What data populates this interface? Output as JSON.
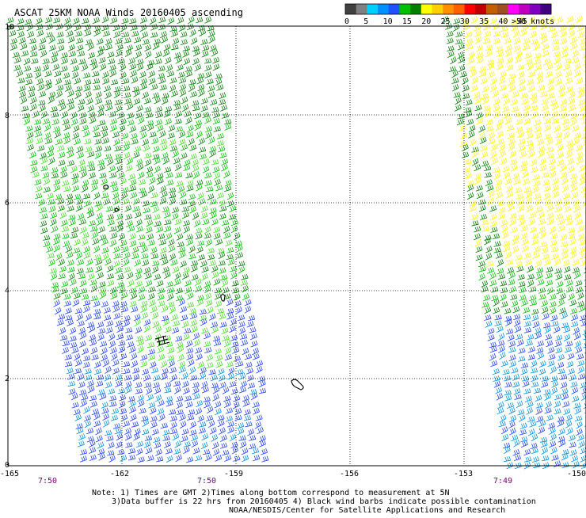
{
  "title": "ASCAT 25KM NOAA Winds 20160405 ascending",
  "legend": {
    "unit_label": ">50 knots",
    "ticks": [
      "0",
      "5",
      "10",
      "15",
      "20",
      "25",
      "30",
      "35",
      "40",
      "45"
    ],
    "colors": [
      "#404040",
      "#808080",
      "#00d0ff",
      "#0090ff",
      "#2050ff",
      "#00c000",
      "#008000",
      "#ffff00",
      "#ffd000",
      "#ff9000",
      "#ff6000",
      "#ff0000",
      "#c00000",
      "#c06000",
      "#a05020",
      "#ff00ff",
      "#c000c0",
      "#8000c0",
      "#400080"
    ]
  },
  "axes": {
    "lat_labels": [
      "10",
      "8",
      "6",
      "4",
      "2",
      "0"
    ],
    "lon_labels": [
      "-165",
      "-162",
      "-159",
      "-156",
      "-153",
      "-150"
    ]
  },
  "times": [
    "7:50",
    "7:50",
    "7:49"
  ],
  "notes": [
    "Note: 1) Times are GMT 2)Times along bottom correspond to measurement at 5N",
    "3)Data buffer is 22 hrs from 20160405 4) Black wind barbs indicate possible contamination",
    "NOAA/NESDIS/Center for Satellite Applications and Research"
  ],
  "colors": {
    "time_label": "#800080",
    "grid": "#000000",
    "barb_green_dark": "#008000",
    "barb_green": "#00c000",
    "barb_green_light": "#40e020",
    "barb_blue": "#2040ff",
    "barb_cyan": "#0090e0",
    "barb_yellow": "#ffff00",
    "barb_black": "#000000"
  }
}
